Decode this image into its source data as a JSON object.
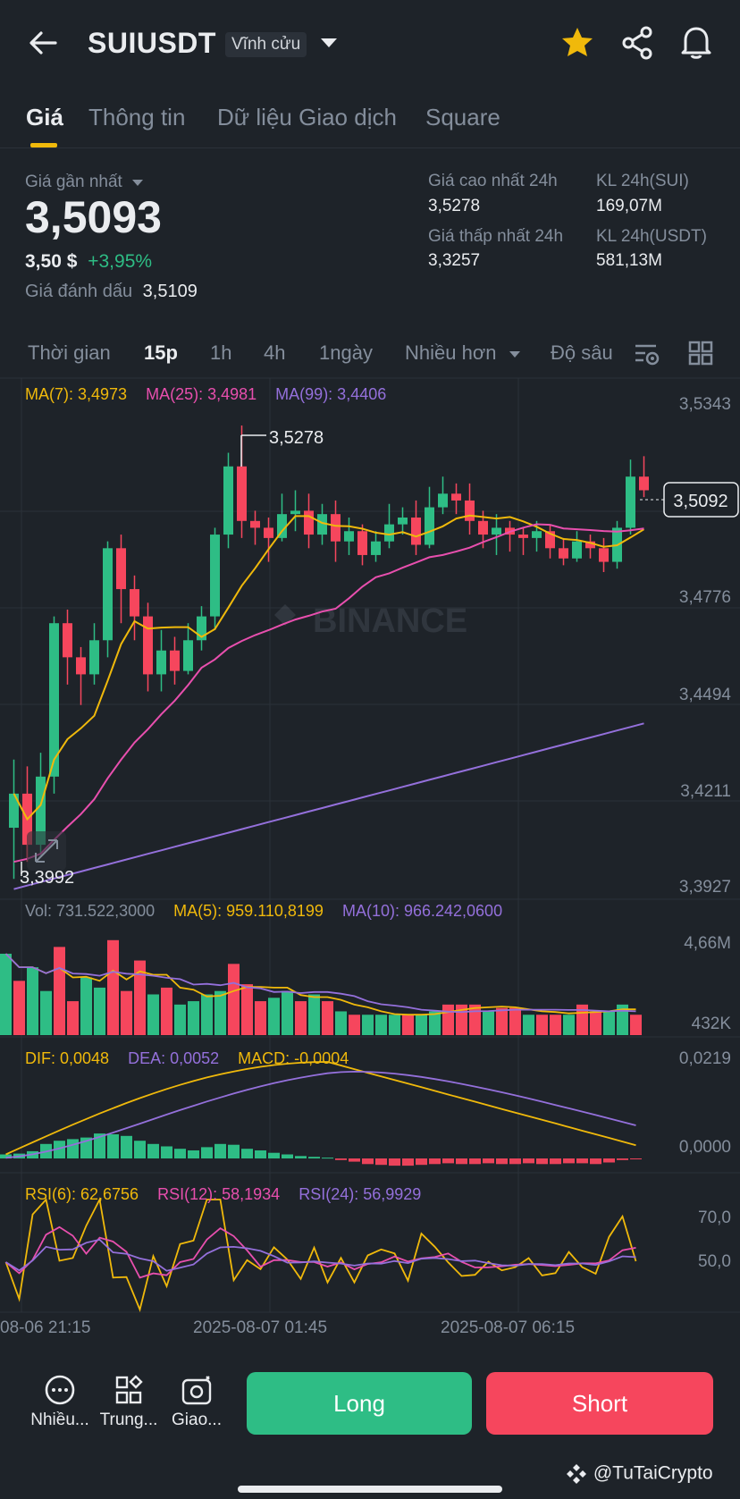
{
  "header": {
    "symbol": "SUIUSDT",
    "contract_type": "Vĩnh cửu"
  },
  "tabs": [
    "Giá",
    "Thông tin",
    "Dữ liệu Giao dịch",
    "Square"
  ],
  "price": {
    "last_label": "Giá gần nhất",
    "last": "3,5093",
    "usd": "3,50 $",
    "change": "+3,95%",
    "mark_label": "Giá đánh dấu",
    "mark": "3,5109"
  },
  "stats": {
    "high_label": "Giá cao nhất 24h",
    "high": "3,5278",
    "low_label": "Giá thấp nhất 24h",
    "low": "3,3257",
    "vol_base_label": "KL 24h(SUI)",
    "vol_base": "169,07M",
    "vol_quote_label": "KL 24h(USDT)",
    "vol_quote": "581,13M"
  },
  "intervals": {
    "time": "Thời gian",
    "i15": "15p",
    "i1h": "1h",
    "i4h": "4h",
    "i1d": "1ngày",
    "more": "Nhiều hơn",
    "depth": "Độ sâu"
  },
  "ma": {
    "ma7": "MA(7): 3,4973",
    "ma25": "MA(25): 3,4981",
    "ma99": "MA(99): 3,4406"
  },
  "price_axis": [
    "3,5343",
    "3,4776",
    "3,4494",
    "3,4211",
    "3,3927"
  ],
  "current_price_tag": "3,5092",
  "high_marker": "3,5278",
  "low_marker": "3,3992",
  "watermark": "BINANCE",
  "vol": {
    "vol": "Vol: 731.522,3000",
    "ma5": "MA(5): 959.110,8199",
    "ma10": "MA(10): 966.242,0600",
    "axis_top": "4,66M",
    "axis_bottom": "432K"
  },
  "macd": {
    "dif": "DIF: 0,0048",
    "dea": "DEA: 0,0052",
    "macd": "MACD: -0,0004",
    "axis_top": "0,0219",
    "axis_bottom": "0,0000"
  },
  "rsi": {
    "rsi6": "RSI(6): 62,6756",
    "rsi12": "RSI(12): 58,1934",
    "rsi24": "RSI(24): 56,9929",
    "axis_top": "70,0",
    "axis_bottom": "50,0"
  },
  "time_axis": [
    "08-06 21:15",
    "2025-08-07 01:45",
    "2025-08-07 06:15"
  ],
  "bottom_bar": {
    "more": "Nhiều...",
    "mid": "Trung...",
    "trade": "Giao...",
    "long": "Long",
    "short": "Short"
  },
  "credit": "@TuTaiCrypto",
  "colors": {
    "up": "#2ebd85",
    "down": "#f6465d",
    "ma7": "#f0b90b",
    "ma25": "#e84fae",
    "ma99": "#9470db",
    "accent": "#f0b90b"
  },
  "candles": [
    [
      3.41,
      3.42,
      3.395,
      3.43
    ],
    [
      3.42,
      3.405,
      3.4,
      3.428
    ],
    [
      3.405,
      3.425,
      3.402,
      3.432
    ],
    [
      3.425,
      3.47,
      3.42,
      3.472
    ],
    [
      3.47,
      3.46,
      3.452,
      3.474
    ],
    [
      3.46,
      3.455,
      3.446,
      3.463
    ],
    [
      3.455,
      3.465,
      3.452,
      3.47
    ],
    [
      3.465,
      3.492,
      3.46,
      3.494
    ],
    [
      3.492,
      3.48,
      3.47,
      3.496
    ],
    [
      3.48,
      3.472,
      3.465,
      3.484
    ],
    [
      3.472,
      3.455,
      3.45,
      3.476
    ],
    [
      3.455,
      3.462,
      3.45,
      3.468
    ],
    [
      3.462,
      3.456,
      3.452,
      3.466
    ],
    [
      3.456,
      3.465,
      3.455,
      3.47
    ],
    [
      3.465,
      3.472,
      3.462,
      3.475
    ],
    [
      3.472,
      3.496,
      3.468,
      3.498
    ],
    [
      3.496,
      3.516,
      3.492,
      3.52
    ],
    [
      3.516,
      3.5,
      3.495,
      3.528
    ],
    [
      3.5,
      3.498,
      3.493,
      3.503
    ],
    [
      3.498,
      3.495,
      3.488,
      3.501
    ],
    [
      3.495,
      3.502,
      3.494,
      3.508
    ],
    [
      3.502,
      3.503,
      3.497,
      3.509
    ],
    [
      3.503,
      3.496,
      3.492,
      3.508
    ],
    [
      3.496,
      3.502,
      3.493,
      3.505
    ],
    [
      3.502,
      3.494,
      3.488,
      3.506
    ],
    [
      3.494,
      3.497,
      3.49,
      3.501
    ],
    [
      3.497,
      3.49,
      3.487,
      3.499
    ],
    [
      3.49,
      3.494,
      3.488,
      3.497
    ],
    [
      3.494,
      3.499,
      3.492,
      3.505
    ],
    [
      3.499,
      3.501,
      3.496,
      3.504
    ],
    [
      3.501,
      3.493,
      3.49,
      3.506
    ],
    [
      3.493,
      3.504,
      3.492,
      3.51
    ],
    [
      3.504,
      3.508,
      3.502,
      3.513
    ],
    [
      3.508,
      3.506,
      3.502,
      3.511
    ],
    [
      3.506,
      3.5,
      3.496,
      3.511
    ],
    [
      3.5,
      3.496,
      3.492,
      3.503
    ],
    [
      3.496,
      3.498,
      3.49,
      3.502
    ],
    [
      3.498,
      3.496,
      3.491,
      3.5
    ],
    [
      3.496,
      3.495,
      3.49,
      3.498
    ],
    [
      3.495,
      3.497,
      3.491,
      3.5
    ],
    [
      3.497,
      3.492,
      3.489,
      3.499
    ],
    [
      3.492,
      3.489,
      3.487,
      3.495
    ],
    [
      3.489,
      3.494,
      3.488,
      3.497
    ],
    [
      3.494,
      3.492,
      3.489,
      3.496
    ],
    [
      3.492,
      3.488,
      3.485,
      3.495
    ],
    [
      3.488,
      3.498,
      3.486,
      3.5
    ],
    [
      3.498,
      3.513,
      3.496,
      3.518
    ],
    [
      3.513,
      3.509,
      3.507,
      3.519
    ]
  ],
  "volumes": [
    2.4,
    1.6,
    2.0,
    1.3,
    2.6,
    1.0,
    1.7,
    1.4,
    2.8,
    1.3,
    2.2,
    1.2,
    1.4,
    0.9,
    1.0,
    1.2,
    1.3,
    2.1,
    1.5,
    1.0,
    1.1,
    1.3,
    1.0,
    1.2,
    1.0,
    0.7,
    0.6,
    0.6,
    0.6,
    0.6,
    0.6,
    0.6,
    0.7,
    0.9,
    0.9,
    0.9,
    0.7,
    0.8,
    0.8,
    0.6,
    0.6,
    0.6,
    0.6,
    0.9,
    0.7,
    0.7,
    0.9,
    0.6
  ],
  "macd_hist": [
    0.0005,
    0.0006,
    0.0009,
    0.0018,
    0.0022,
    0.0024,
    0.0026,
    0.0031,
    0.003,
    0.0028,
    0.0022,
    0.0018,
    0.0015,
    0.0012,
    0.001,
    0.0014,
    0.0018,
    0.0017,
    0.0012,
    0.001,
    0.0007,
    0.0005,
    0.0003,
    0.0002,
    0.0001,
    -0.0002,
    -0.0004,
    -0.0007,
    -0.0008,
    -0.0009,
    -0.0009,
    -0.0008,
    -0.0007,
    -0.0006,
    -0.0007,
    -0.0007,
    -0.0006,
    -0.0007,
    -0.0007,
    -0.0006,
    -0.0007,
    -0.0007,
    -0.0006,
    -0.0006,
    -0.0007,
    -0.0005,
    -0.0002,
    -0.0001
  ]
}
